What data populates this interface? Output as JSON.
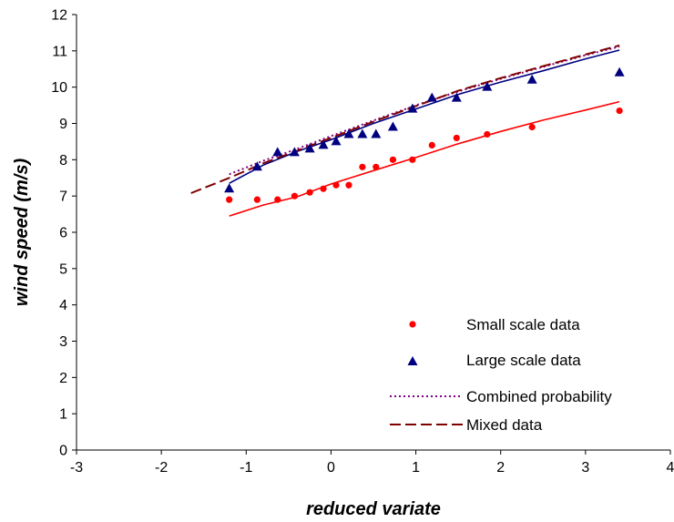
{
  "chart_data": {
    "type": "scatter",
    "title": "",
    "xlabel": "reduced variate",
    "ylabel": "wind speed (m/s)",
    "xlim": [
      -3,
      4
    ],
    "ylim": [
      0,
      12
    ],
    "xticks": [
      -3,
      -2,
      -1,
      0,
      1,
      2,
      3,
      4
    ],
    "yticks": [
      0,
      1,
      2,
      3,
      4,
      5,
      6,
      7,
      8,
      9,
      10,
      11,
      12
    ],
    "grid": false,
    "legend_position": "bottom-right",
    "colors": {
      "small_points": "#ff0000",
      "small_fit": "#ff0000",
      "large_points": "#000080",
      "large_fit": "#000080",
      "combined": "#800080",
      "mixed": "#800000"
    },
    "series": [
      {
        "name": "Small scale data",
        "kind": "points",
        "marker": "circle",
        "x": [
          -1.2,
          -0.87,
          -0.63,
          -0.43,
          -0.25,
          -0.09,
          0.06,
          0.21,
          0.37,
          0.53,
          0.73,
          0.96,
          1.19,
          1.48,
          1.84,
          2.37,
          3.4
        ],
        "y": [
          6.9,
          6.9,
          6.9,
          7.0,
          7.1,
          7.2,
          7.3,
          7.3,
          7.8,
          7.8,
          8.0,
          8.0,
          8.4,
          8.6,
          8.7,
          8.9,
          9.35
        ]
      },
      {
        "name": "Large scale data",
        "kind": "points",
        "marker": "triangle",
        "x": [
          -1.2,
          -0.87,
          -0.63,
          -0.43,
          -0.25,
          -0.09,
          0.06,
          0.21,
          0.37,
          0.53,
          0.73,
          0.96,
          1.19,
          1.48,
          1.84,
          2.37,
          3.4
        ],
        "y": [
          7.2,
          7.8,
          8.2,
          8.2,
          8.3,
          8.4,
          8.5,
          8.7,
          8.7,
          8.7,
          8.9,
          9.4,
          9.7,
          9.7,
          10.0,
          10.2,
          10.4
        ]
      },
      {
        "name": "",
        "kind": "line",
        "style": "solid",
        "x": [
          -1.2,
          -0.8,
          -0.4,
          0,
          0.5,
          1,
          1.5,
          2,
          2.5,
          3,
          3.4
        ],
        "y": [
          6.45,
          6.75,
          6.98,
          7.33,
          7.7,
          8.06,
          8.44,
          8.78,
          9.09,
          9.37,
          9.6
        ]
      },
      {
        "name": "",
        "kind": "line",
        "style": "solid",
        "x": [
          -1.2,
          -0.8,
          -0.4,
          0,
          0.5,
          1,
          1.5,
          2,
          2.5,
          3,
          3.4
        ],
        "y": [
          7.35,
          7.85,
          8.23,
          8.55,
          9.0,
          9.4,
          9.8,
          10.14,
          10.45,
          10.78,
          11.02
        ]
      },
      {
        "name": "Combined probability",
        "kind": "line",
        "style": "dotted",
        "x": [
          -1.2,
          -0.8,
          -0.4,
          0,
          0.5,
          1,
          1.5,
          2,
          2.5,
          3,
          3.4
        ],
        "y": [
          7.6,
          7.97,
          8.3,
          8.65,
          9.08,
          9.5,
          9.88,
          10.23,
          10.56,
          10.88,
          11.12
        ]
      },
      {
        "name": "Mixed data",
        "kind": "line",
        "style": "dashed",
        "x": [
          -1.65,
          -1.2,
          -0.8,
          -0.4,
          0,
          0.5,
          1,
          1.5,
          2,
          2.5,
          3,
          3.4
        ],
        "y": [
          7.08,
          7.5,
          7.9,
          8.25,
          8.6,
          9.05,
          9.48,
          9.9,
          10.25,
          10.58,
          10.9,
          11.15
        ]
      }
    ]
  }
}
